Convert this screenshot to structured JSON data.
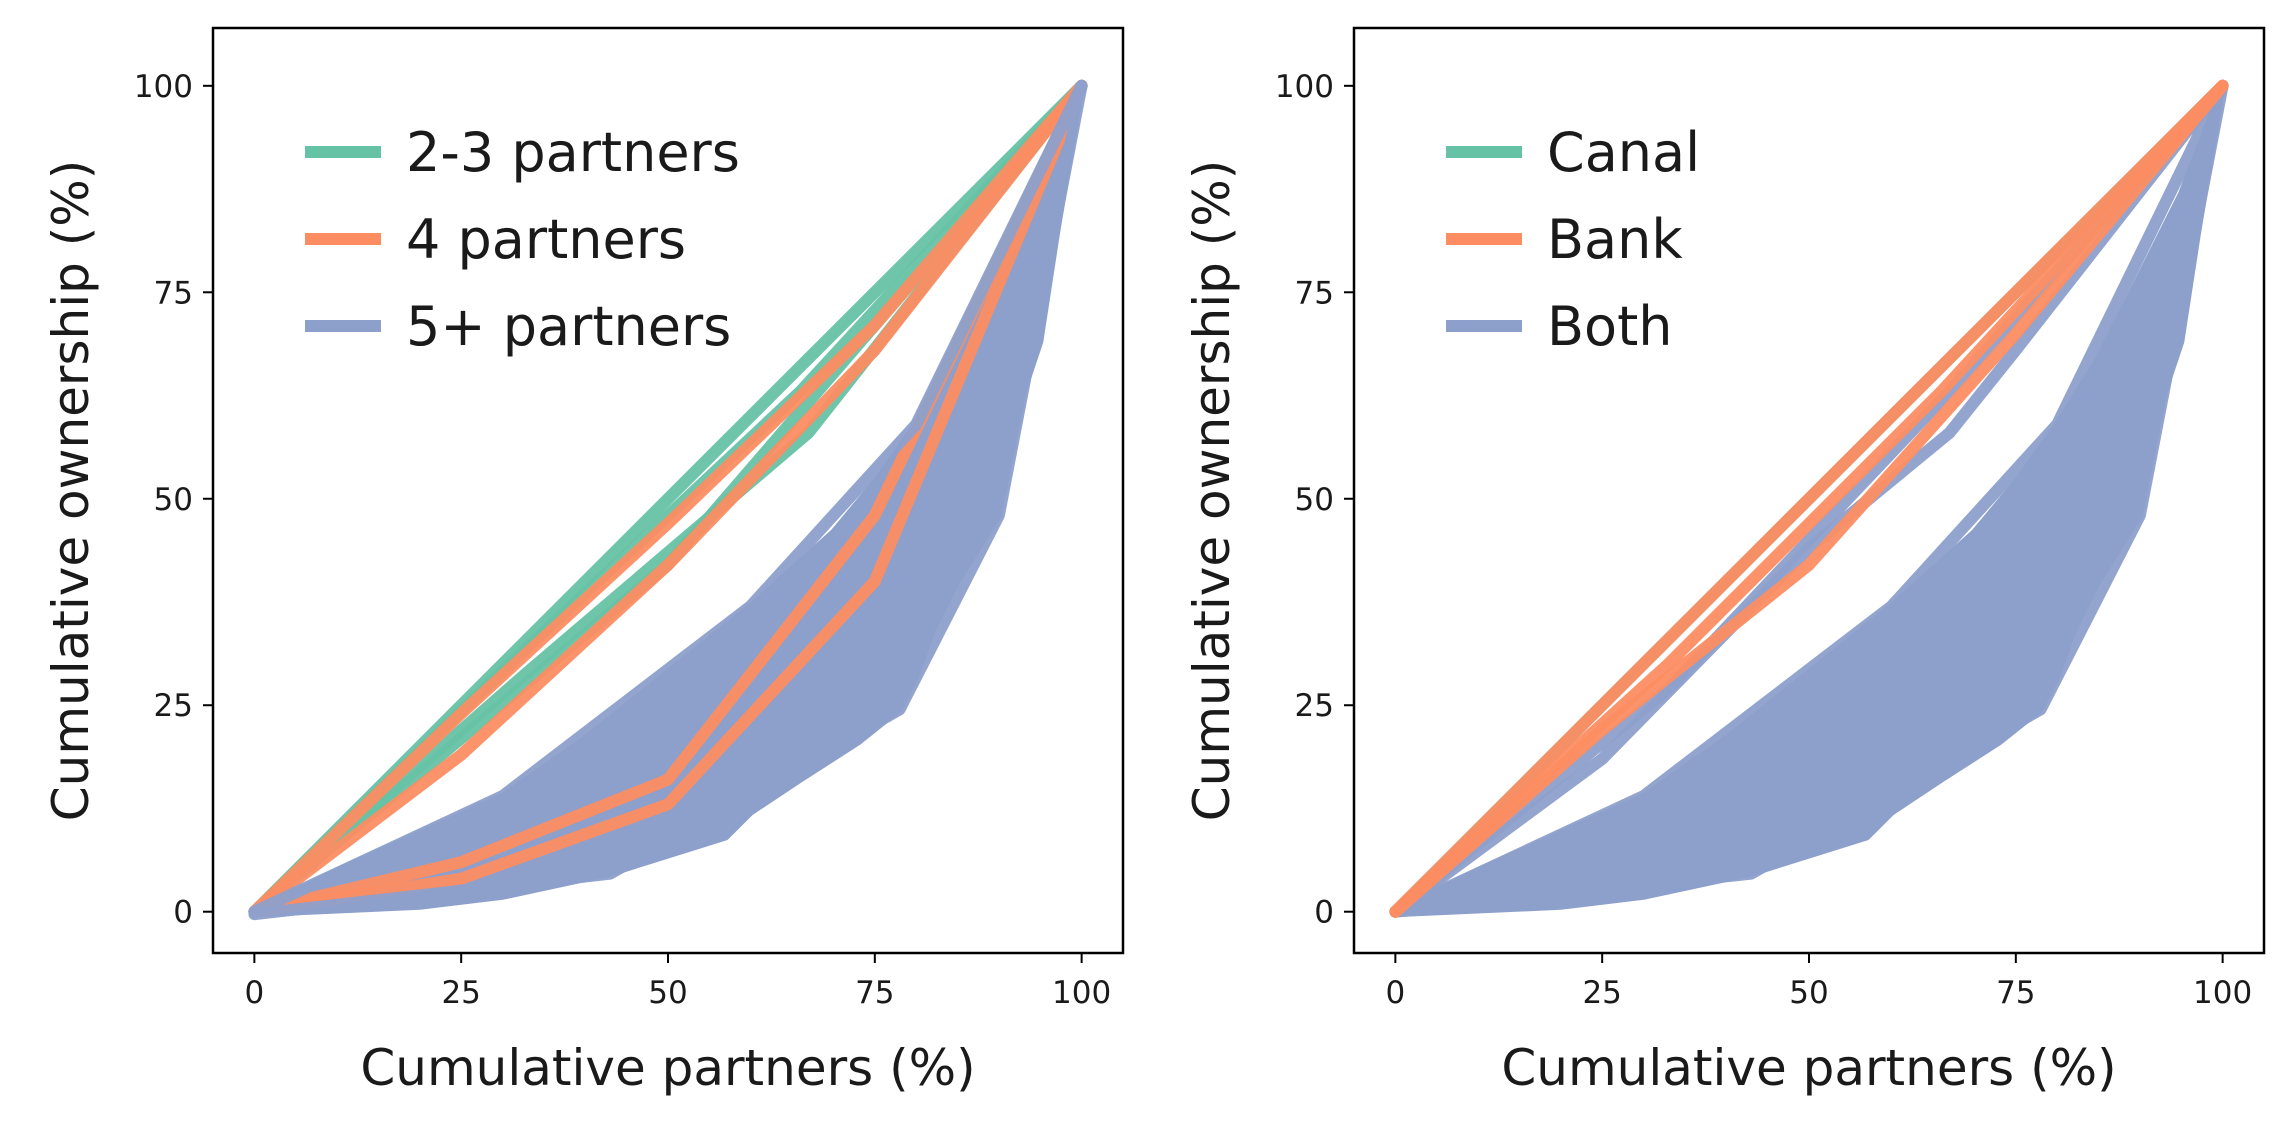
{
  "chart_data": [
    {
      "type": "line",
      "xlabel": "Cumulative partners (%)",
      "ylabel": "Cumulative ownership (%)",
      "xlim": [
        -5,
        105
      ],
      "ylim": [
        -5,
        107
      ],
      "xticks": [
        "0",
        "25",
        "50",
        "75",
        "100"
      ],
      "yticks": [
        "0",
        "25",
        "50",
        "75",
        "100"
      ],
      "legend": {
        "placement": "upper-left",
        "entries": [
          "2-3 partners",
          "4 partners",
          "5+ partners"
        ]
      },
      "band": {
        "series": "5+ partners",
        "color": "#8da0cb",
        "upper": [
          [
            0,
            0
          ],
          [
            10,
            5
          ],
          [
            20,
            9.5
          ],
          [
            30,
            14
          ],
          [
            40,
            21
          ],
          [
            50,
            29
          ],
          [
            60,
            37
          ],
          [
            70,
            46
          ],
          [
            75,
            52
          ],
          [
            80,
            59
          ],
          [
            85,
            67
          ],
          [
            90,
            77
          ],
          [
            95,
            87
          ],
          [
            100,
            100
          ]
        ],
        "lower": [
          [
            0,
            -0.3
          ],
          [
            20,
            0.6
          ],
          [
            30,
            1.8
          ],
          [
            43,
            4.6
          ],
          [
            57,
            9
          ],
          [
            60,
            12
          ],
          [
            66,
            16
          ],
          [
            73,
            20.5
          ],
          [
            78,
            24.5
          ],
          [
            80,
            28.5
          ],
          [
            82,
            34
          ],
          [
            85,
            40
          ],
          [
            90,
            48
          ],
          [
            93,
            63
          ],
          [
            95,
            69
          ],
          [
            97,
            82
          ],
          [
            100,
            100
          ]
        ]
      },
      "series": [
        {
          "name": "2-3 partners",
          "color": "#66c2a5",
          "lines": [
            [
              [
                0,
                0
              ],
              [
                100,
                100
              ]
            ],
            [
              [
                0,
                0
              ],
              [
                33,
                29
              ],
              [
                67,
                58
              ],
              [
                100,
                100
              ]
            ],
            [
              [
                0,
                0
              ],
              [
                50,
                42
              ],
              [
                100,
                100
              ]
            ],
            [
              [
                0,
                0
              ],
              [
                33,
                32
              ],
              [
                66,
                63
              ],
              [
                100,
                100
              ]
            ]
          ]
        },
        {
          "name": "4 partners",
          "color": "#fc8d62",
          "lines": [
            [
              [
                0,
                0
              ],
              [
                25,
                19
              ],
              [
                50,
                42
              ],
              [
                75,
                68
              ],
              [
                100,
                100
              ]
            ],
            [
              [
                0,
                0
              ],
              [
                25,
                24
              ],
              [
                50,
                47
              ],
              [
                75,
                71
              ],
              [
                100,
                100
              ]
            ],
            [
              [
                0,
                0
              ],
              [
                25,
                4
              ],
              [
                50,
                13
              ],
              [
                75,
                40
              ],
              [
                100,
                100
              ]
            ],
            [
              [
                0,
                0
              ],
              [
                25,
                6
              ],
              [
                50,
                16
              ],
              [
                75,
                48
              ],
              [
                100,
                100
              ]
            ]
          ]
        },
        {
          "name": "5+ partners",
          "color": "#8da0cb",
          "lines": [
            [
              [
                0,
                0
              ],
              [
                30,
                14
              ],
              [
                60,
                37
              ],
              [
                80,
                59
              ],
              [
                100,
                100
              ]
            ],
            [
              [
                0,
                -0.3
              ],
              [
                43,
                4.6
              ],
              [
                78,
                24.5
              ],
              [
                90,
                48
              ],
              [
                100,
                100
              ]
            ]
          ]
        }
      ]
    },
    {
      "type": "line",
      "xlabel": "Cumulative partners (%)",
      "ylabel": "Cumulative ownership (%)",
      "xlim": [
        -5,
        105
      ],
      "ylim": [
        -5,
        107
      ],
      "xticks": [
        "0",
        "25",
        "50",
        "75",
        "100"
      ],
      "yticks": [
        "0",
        "25",
        "50",
        "75",
        "100"
      ],
      "legend": {
        "placement": "upper-left",
        "entries": [
          "Canal",
          "Bank",
          "Both"
        ]
      },
      "band": {
        "series": "Both",
        "color": "#8da0cb",
        "upper": [
          [
            0,
            0
          ],
          [
            10,
            5
          ],
          [
            20,
            9.5
          ],
          [
            30,
            14
          ],
          [
            40,
            21
          ],
          [
            50,
            29
          ],
          [
            60,
            37
          ],
          [
            70,
            46
          ],
          [
            75,
            52
          ],
          [
            80,
            59
          ],
          [
            85,
            67
          ],
          [
            90,
            77
          ],
          [
            95,
            87
          ],
          [
            100,
            100
          ]
        ],
        "lower": [
          [
            0,
            -0.3
          ],
          [
            20,
            0.6
          ],
          [
            30,
            1.8
          ],
          [
            43,
            4.6
          ],
          [
            57,
            9
          ],
          [
            60,
            12
          ],
          [
            66,
            16
          ],
          [
            73,
            20.5
          ],
          [
            78,
            24.5
          ],
          [
            80,
            28.5
          ],
          [
            82,
            34
          ],
          [
            85,
            40
          ],
          [
            90,
            48
          ],
          [
            93,
            63
          ],
          [
            95,
            69
          ],
          [
            97,
            82
          ],
          [
            100,
            100
          ]
        ]
      },
      "series": [
        {
          "name": "Both",
          "color": "#8da0cb",
          "lines": [
            [
              [
                0,
                0
              ],
              [
                25,
                18.5
              ],
              [
                50,
                44
              ],
              [
                67,
                58
              ],
              [
                75,
                68
              ],
              [
                100,
                100
              ]
            ],
            [
              [
                0,
                0
              ],
              [
                33,
                27
              ],
              [
                67,
                63
              ],
              [
                100,
                100
              ]
            ],
            [
              [
                0,
                0
              ],
              [
                30,
                14
              ],
              [
                60,
                37
              ],
              [
                80,
                59
              ],
              [
                100,
                100
              ]
            ],
            [
              [
                0,
                0
              ],
              [
                43,
                4.6
              ],
              [
                78,
                24.5
              ],
              [
                90,
                48
              ],
              [
                100,
                100
              ]
            ]
          ]
        },
        {
          "name": "Canal",
          "color": "#66c2a5",
          "lines": [
            [
              [
                0,
                0
              ],
              [
                100,
                100
              ]
            ]
          ]
        },
        {
          "name": "Bank",
          "color": "#fc8d62",
          "lines": [
            [
              [
                0,
                0
              ],
              [
                100,
                100
              ]
            ],
            [
              [
                0,
                0
              ],
              [
                25,
                22
              ],
              [
                50,
                42
              ],
              [
                75,
                70
              ],
              [
                100,
                100
              ]
            ],
            [
              [
                0,
                0
              ],
              [
                33,
                30
              ],
              [
                66,
                63
              ],
              [
                100,
                100
              ]
            ]
          ]
        }
      ]
    }
  ]
}
